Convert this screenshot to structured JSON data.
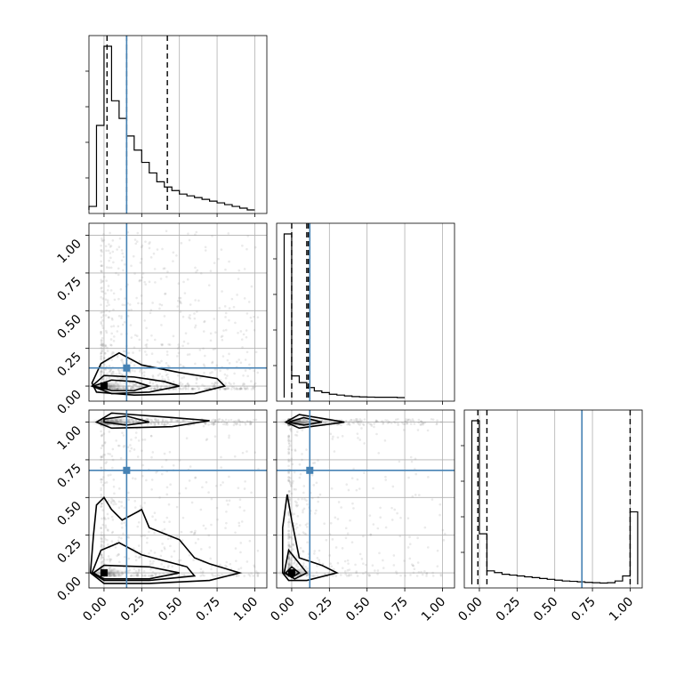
{
  "chart_data": {
    "type": "corner",
    "parameters": 3,
    "xlim": [
      -0.1,
      1.08
    ],
    "ylim": [
      -0.1,
      1.08
    ],
    "tick_values": [
      0.0,
      0.25,
      0.5,
      0.75,
      1.0
    ],
    "tick_labels": [
      "0.00",
      "0.25",
      "0.50",
      "0.75",
      "1.00"
    ],
    "truth_values": [
      0.15,
      0.12,
      0.68
    ],
    "truth_color": "#4682b4",
    "quantile_lines": [
      [
        0.02,
        0.15,
        0.42
      ],
      [
        0.0,
        0.1,
        0.11
      ],
      [
        -0.01,
        0.05,
        1.0
      ]
    ],
    "grid": true,
    "histograms": [
      {
        "param": 0,
        "bin_edges": [
          -0.1,
          -0.05,
          0.0,
          0.05,
          0.1,
          0.15,
          0.2,
          0.25,
          0.3,
          0.35,
          0.4,
          0.45,
          0.5,
          0.55,
          0.6,
          0.65,
          0.7,
          0.75,
          0.8,
          0.85,
          0.9,
          0.95,
          1.0
        ],
        "counts": [
          0.02,
          0.48,
          0.93,
          0.62,
          0.52,
          0.42,
          0.34,
          0.27,
          0.21,
          0.16,
          0.13,
          0.11,
          0.09,
          0.08,
          0.07,
          0.06,
          0.05,
          0.04,
          0.03,
          0.02,
          0.01,
          0.0
        ]
      },
      {
        "param": 1,
        "bin_edges": [
          -0.05,
          0.0,
          0.05,
          0.1,
          0.15,
          0.2,
          0.25,
          0.3,
          0.35,
          0.4,
          0.45,
          0.5,
          0.55,
          0.6,
          0.65,
          0.7,
          0.75
        ],
        "counts": [
          0.98,
          0.13,
          0.09,
          0.06,
          0.04,
          0.03,
          0.02,
          0.015,
          0.01,
          0.006,
          0.004,
          0.003,
          0.002,
          0.002,
          0.002,
          0.0
        ]
      },
      {
        "param": 2,
        "bin_edges": [
          -0.05,
          0.0,
          0.05,
          0.1,
          0.15,
          0.2,
          0.25,
          0.3,
          0.35,
          0.4,
          0.45,
          0.5,
          0.55,
          0.6,
          0.65,
          0.7,
          0.75,
          0.8,
          0.85,
          0.9,
          0.95,
          1.0,
          1.05
        ],
        "counts": [
          0.97,
          0.3,
          0.08,
          0.07,
          0.06,
          0.055,
          0.05,
          0.045,
          0.04,
          0.035,
          0.03,
          0.025,
          0.02,
          0.018,
          0.015,
          0.012,
          0.01,
          0.008,
          0.01,
          0.02,
          0.05,
          0.43
        ]
      }
    ],
    "contours": [
      {
        "x_param": 0,
        "y_param": 1,
        "levels": [
          [
            [
              -0.07,
              0.0
            ],
            [
              0.05,
              0.04
            ],
            [
              0.2,
              0.03
            ],
            [
              0.3,
              0.0
            ],
            [
              0.2,
              -0.03
            ],
            [
              0.05,
              -0.03
            ],
            [
              -0.07,
              0.0
            ]
          ],
          [
            [
              -0.08,
              0.0
            ],
            [
              0.0,
              0.07
            ],
            [
              0.2,
              0.06
            ],
            [
              0.4,
              0.03
            ],
            [
              0.5,
              0.0
            ],
            [
              0.3,
              -0.04
            ],
            [
              0.05,
              -0.05
            ],
            [
              -0.08,
              0.0
            ]
          ],
          [
            [
              -0.08,
              0.02
            ],
            [
              -0.02,
              0.15
            ],
            [
              0.1,
              0.22
            ],
            [
              0.25,
              0.14
            ],
            [
              0.5,
              0.09
            ],
            [
              0.75,
              0.05
            ],
            [
              0.8,
              0.0
            ],
            [
              0.6,
              -0.05
            ],
            [
              0.2,
              -0.06
            ],
            [
              -0.05,
              -0.04
            ],
            [
              -0.08,
              0.02
            ]
          ]
        ]
      },
      {
        "x_param": 0,
        "y_param": 2,
        "levels": [
          [
            [
              0.0,
              1.02
            ],
            [
              0.15,
              1.04
            ],
            [
              0.3,
              1.0
            ],
            [
              0.15,
              0.98
            ],
            [
              0.0,
              1.0
            ],
            [
              0.0,
              1.02
            ]
          ],
          [
            [
              -0.05,
              1.0
            ],
            [
              0.05,
              1.06
            ],
            [
              0.45,
              1.03
            ],
            [
              0.7,
              1.01
            ],
            [
              0.45,
              0.97
            ],
            [
              0.05,
              0.96
            ],
            [
              -0.05,
              1.0
            ]
          ],
          [
            [
              -0.07,
              0.0
            ],
            [
              0.0,
              0.05
            ],
            [
              0.3,
              0.04
            ],
            [
              0.5,
              0.0
            ],
            [
              0.3,
              -0.04
            ],
            [
              0.0,
              -0.04
            ],
            [
              -0.07,
              0.0
            ]
          ],
          [
            [
              -0.08,
              0.0
            ],
            [
              -0.02,
              0.15
            ],
            [
              0.1,
              0.2
            ],
            [
              0.25,
              0.12
            ],
            [
              0.55,
              0.04
            ],
            [
              0.6,
              -0.02
            ],
            [
              0.3,
              -0.05
            ],
            [
              0.0,
              -0.05
            ],
            [
              -0.08,
              0.0
            ]
          ],
          [
            [
              -0.09,
              0.0
            ],
            [
              -0.07,
              0.25
            ],
            [
              -0.05,
              0.45
            ],
            [
              0.0,
              0.5
            ],
            [
              0.05,
              0.42
            ],
            [
              0.12,
              0.35
            ],
            [
              0.25,
              0.42
            ],
            [
              0.3,
              0.3
            ],
            [
              0.5,
              0.22
            ],
            [
              0.6,
              0.1
            ],
            [
              0.7,
              0.06
            ],
            [
              0.9,
              0.0
            ],
            [
              0.7,
              -0.05
            ],
            [
              0.3,
              -0.07
            ],
            [
              0.0,
              -0.07
            ],
            [
              -0.09,
              0.0
            ]
          ]
        ]
      },
      {
        "x_param": 1,
        "y_param": 2,
        "levels": [
          [
            [
              -0.02,
              1.0
            ],
            [
              0.08,
              1.03
            ],
            [
              0.2,
              1.0
            ],
            [
              0.08,
              0.98
            ],
            [
              -0.02,
              1.0
            ]
          ],
          [
            [
              -0.04,
              1.0
            ],
            [
              0.05,
              1.05
            ],
            [
              0.35,
              1.0
            ],
            [
              0.05,
              0.96
            ],
            [
              -0.04,
              1.0
            ]
          ],
          [
            [
              -0.04,
              0.0
            ],
            [
              0.0,
              0.04
            ],
            [
              0.05,
              0.0
            ],
            [
              0.0,
              -0.03
            ],
            [
              -0.04,
              0.0
            ]
          ],
          [
            [
              -0.05,
              0.0
            ],
            [
              -0.02,
              0.15
            ],
            [
              0.02,
              0.1
            ],
            [
              0.1,
              0.0
            ],
            [
              0.02,
              -0.04
            ],
            [
              -0.05,
              0.0
            ]
          ],
          [
            [
              -0.06,
              0.0
            ],
            [
              -0.06,
              0.3
            ],
            [
              -0.03,
              0.52
            ],
            [
              0.0,
              0.35
            ],
            [
              0.05,
              0.1
            ],
            [
              0.2,
              0.05
            ],
            [
              0.3,
              0.0
            ],
            [
              0.1,
              -0.05
            ],
            [
              -0.02,
              -0.05
            ],
            [
              -0.06,
              0.0
            ]
          ]
        ]
      }
    ]
  }
}
